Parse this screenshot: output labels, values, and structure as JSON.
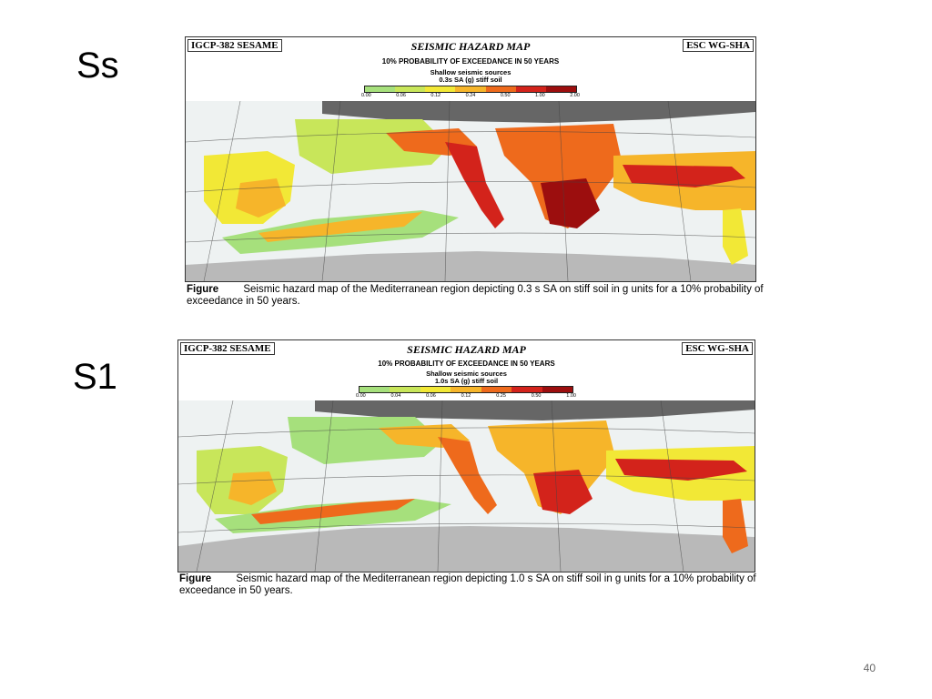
{
  "slide": {
    "page_number": "40"
  },
  "figures": [
    {
      "label": "Ss",
      "left_tag": "IGCP-382 SESAME",
      "right_tag": "ESC WG-SHA",
      "title": "SEISMIC HAZARD MAP",
      "subtitle": "10% PROBABILITY OF EXCEEDANCE IN 50 YEARS",
      "sources": "Shallow seismic sources",
      "measure": "0.3s SA (g) stiff soil",
      "scale_ticks": [
        "0.00",
        "0.06",
        "0.12",
        "0.24",
        "0.50",
        "1.00",
        "2.00"
      ],
      "caption_word": "Figure",
      "caption_text": "Seismic hazard map of the Mediterranean region depicting 0.3 s SA on stiff soil in g units for a 10% probability of exceedance in 50 years."
    },
    {
      "label": "S1",
      "left_tag": "IGCP-382 SESAME",
      "right_tag": "ESC WG-SHA",
      "title": "SEISMIC HAZARD MAP",
      "subtitle": "10% PROBABILITY OF EXCEEDANCE IN 50 YEARS",
      "sources": "Shallow seismic sources",
      "measure": "1.0s SA (g) stiff soil",
      "scale_ticks": [
        "0.00",
        "0.04",
        "0.06",
        "0.12",
        "0.25",
        "0.50",
        "1.00"
      ],
      "caption_word": "Figure",
      "caption_text": "Seismic hazard map of the Mediterranean region depicting 1.0 s SA on stiff soil in g units for a 10% probability of exceedance in 50 years."
    }
  ],
  "colors": {
    "sea": "#eef2f2",
    "unmapped": "#b9b9b9",
    "north_band": "#666666",
    "scale": [
      "#a6e07c",
      "#c8e65a",
      "#f2e836",
      "#f6b52a",
      "#ee6a1c",
      "#d3231b",
      "#9c0e0e"
    ]
  }
}
